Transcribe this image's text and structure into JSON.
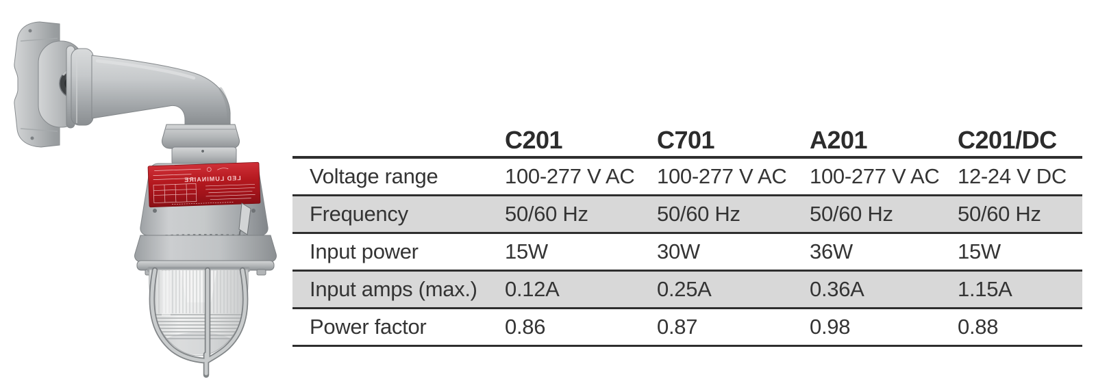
{
  "page": {
    "background": "#ffffff"
  },
  "product_image": {
    "description": "explosion-proof wall-mount LED luminaire photo",
    "nameplate_text": "LED LUMINAIRE",
    "colors": {
      "body_gray": "#c0c3c5",
      "shadow_gray": "#8a8e91",
      "nameplate_red": "#b5191f",
      "globe_glass": "#ececec"
    }
  },
  "spec_table": {
    "header": {
      "labels": [
        "C201",
        "C701",
        "A201",
        "C201/DC"
      ]
    },
    "rows": [
      {
        "label": "Voltage range",
        "values": [
          "100-277 V AC",
          "100-277 V AC",
          "100-277 V AC",
          "12-24 V DC"
        ],
        "shaded": false
      },
      {
        "label": "Frequency",
        "values": [
          "50/60 Hz",
          "50/60 Hz",
          "50/60 Hz",
          "50/60 Hz"
        ],
        "shaded": true
      },
      {
        "label": "Input power",
        "values": [
          "15W",
          "30W",
          "36W",
          "15W"
        ],
        "shaded": false
      },
      {
        "label": "Input amps (max.)",
        "values": [
          "0.12A",
          "0.25A",
          "0.36A",
          "1.15A"
        ],
        "shaded": true
      },
      {
        "label": "Power factor",
        "values": [
          "0.86",
          "0.87",
          "0.98",
          "0.88"
        ],
        "shaded": false
      }
    ],
    "style": {
      "shaded_row_color": "#d8d8d8",
      "line_color": "#2e2e2e",
      "text_color": "#343434"
    }
  }
}
